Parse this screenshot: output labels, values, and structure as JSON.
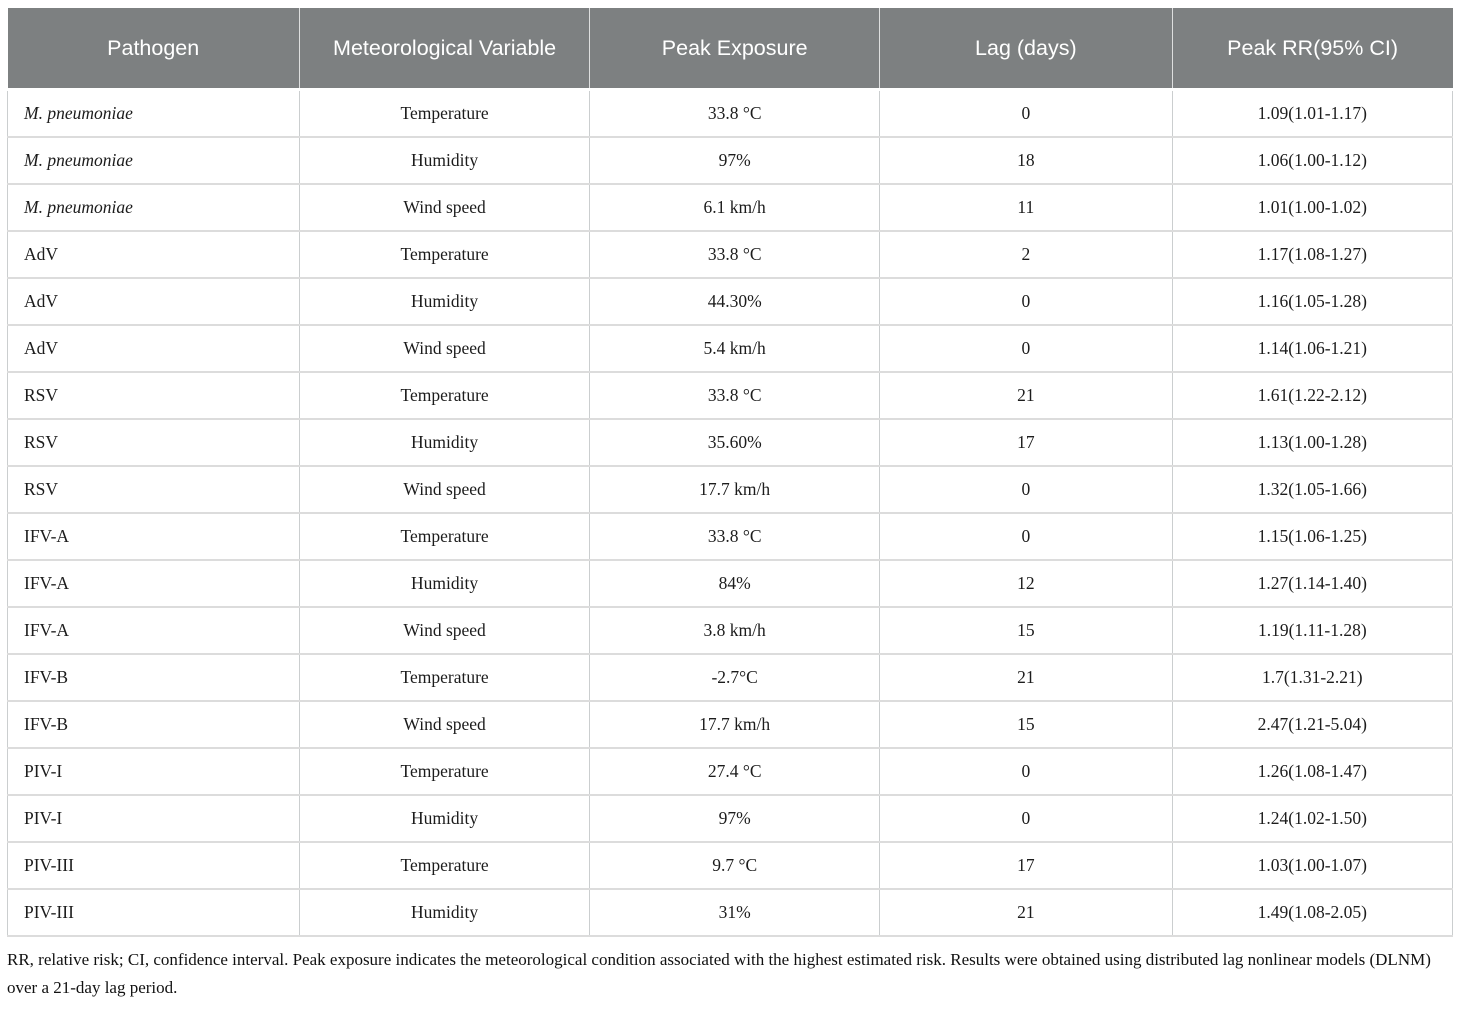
{
  "table": {
    "columns": [
      "Pathogen",
      "Meteorological Variable",
      "Peak Exposure",
      "Lag (days)",
      "Peak RR(95% CI)"
    ],
    "rows": [
      {
        "pathogen": "M. pneumoniae",
        "italic": true,
        "variable": "Temperature",
        "exposure": "33.8 °C",
        "lag": "0",
        "rr": "1.09(1.01-1.17)"
      },
      {
        "pathogen": "M. pneumoniae",
        "italic": true,
        "variable": "Humidity",
        "exposure": "97%",
        "lag": "18",
        "rr": "1.06(1.00-1.12)"
      },
      {
        "pathogen": "M. pneumoniae",
        "italic": true,
        "variable": "Wind speed",
        "exposure": "6.1 km/h",
        "lag": "11",
        "rr": "1.01(1.00-1.02)"
      },
      {
        "pathogen": "AdV",
        "italic": false,
        "variable": "Temperature",
        "exposure": "33.8 °C",
        "lag": "2",
        "rr": "1.17(1.08-1.27)"
      },
      {
        "pathogen": "AdV",
        "italic": false,
        "variable": "Humidity",
        "exposure": "44.30%",
        "lag": "0",
        "rr": "1.16(1.05-1.28)"
      },
      {
        "pathogen": "AdV",
        "italic": false,
        "variable": "Wind speed",
        "exposure": "5.4 km/h",
        "lag": "0",
        "rr": "1.14(1.06-1.21)"
      },
      {
        "pathogen": "RSV",
        "italic": false,
        "variable": "Temperature",
        "exposure": "33.8 °C",
        "lag": "21",
        "rr": "1.61(1.22-2.12)"
      },
      {
        "pathogen": "RSV",
        "italic": false,
        "variable": "Humidity",
        "exposure": "35.60%",
        "lag": "17",
        "rr": "1.13(1.00-1.28)"
      },
      {
        "pathogen": "RSV",
        "italic": false,
        "variable": "Wind speed",
        "exposure": "17.7 km/h",
        "lag": "0",
        "rr": "1.32(1.05-1.66)"
      },
      {
        "pathogen": "IFV-A",
        "italic": false,
        "variable": "Temperature",
        "exposure": "33.8 °C",
        "lag": "0",
        "rr": "1.15(1.06-1.25)"
      },
      {
        "pathogen": "IFV-A",
        "italic": false,
        "variable": "Humidity",
        "exposure": "84%",
        "lag": "12",
        "rr": "1.27(1.14-1.40)"
      },
      {
        "pathogen": "IFV-A",
        "italic": false,
        "variable": "Wind speed",
        "exposure": "3.8 km/h",
        "lag": "15",
        "rr": "1.19(1.11-1.28)"
      },
      {
        "pathogen": "IFV-B",
        "italic": false,
        "variable": "Temperature",
        "exposure": "-2.7°C",
        "lag": "21",
        "rr": "1.7(1.31-2.21)"
      },
      {
        "pathogen": "IFV-B",
        "italic": false,
        "variable": "Wind speed",
        "exposure": "17.7 km/h",
        "lag": "15",
        "rr": "2.47(1.21-5.04)"
      },
      {
        "pathogen": "PIV-I",
        "italic": false,
        "variable": "Temperature",
        "exposure": "27.4 °C",
        "lag": "0",
        "rr": "1.26(1.08-1.47)"
      },
      {
        "pathogen": "PIV-I",
        "italic": false,
        "variable": "Humidity",
        "exposure": "97%",
        "lag": "0",
        "rr": "1.24(1.02-1.50)"
      },
      {
        "pathogen": "PIV-III",
        "italic": false,
        "variable": "Temperature",
        "exposure": "9.7 °C",
        "lag": "17",
        "rr": "1.03(1.00-1.07)"
      },
      {
        "pathogen": "PIV-III",
        "italic": false,
        "variable": "Humidity",
        "exposure": "31%",
        "lag": "21",
        "rr": "1.49(1.08-2.05)"
      }
    ]
  },
  "footnote": "RR, relative risk; CI, confidence interval. Peak exposure indicates the meteorological condition associated with the highest estimated risk. Results were obtained using distributed lag nonlinear models (DLNM) over a 21-day lag period.",
  "colors": {
    "header_bg": "#7d8081",
    "header_text": "#ffffff",
    "body_text": "#1c1c1c",
    "grid_vertical": "#cbcecf",
    "grid_horizontal": "#dcdcdc"
  }
}
